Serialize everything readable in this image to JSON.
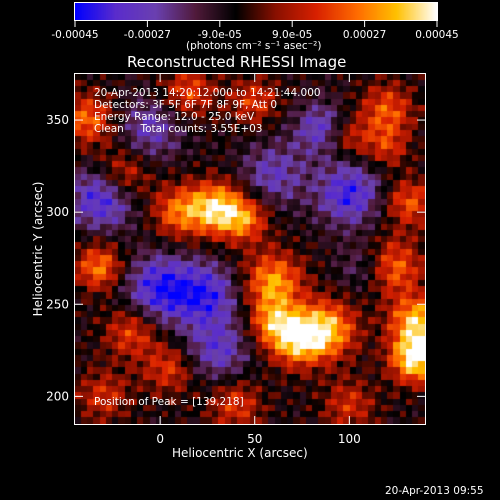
{
  "chart_data": {
    "type": "heatmap",
    "title": "Reconstructed RHESSI Image",
    "xlabel": "Heliocentric X (arcsec)",
    "ylabel": "Heliocentric Y (arcsec)",
    "xlim": [
      -45,
      140
    ],
    "ylim": [
      185,
      375
    ],
    "xticks": [
      0,
      50,
      100
    ],
    "yticks": [
      200,
      250,
      300,
      350
    ],
    "colorbar": {
      "units_label": "(photons cm⁻² s⁻¹ asec⁻²)",
      "range": [
        -0.00045,
        0.00045
      ],
      "tick_labels": [
        "-0.00045",
        "-0.00027",
        "-9.0e-05",
        "9.0e-05",
        "0.00027",
        "0.00045"
      ],
      "colormap": [
        "#0000ff",
        "#5a2ccc",
        "#6a40b0",
        "#501a3a",
        "#000000",
        "#8a1000",
        "#d82000",
        "#ff6a00",
        "#ffc000",
        "#ffffff"
      ]
    },
    "annotations": [
      "20-Apr-2013 14:20:12.000 to 14:21:44.000",
      "Detectors: 3F 5F 6F 7F 8F 9F, Att 0",
      "Energy Range: 12.0 - 25.0 keV",
      "Clean     Total counts: 3.55E+03",
      "Position of Peak = [139,218]"
    ],
    "peak": [
      139,
      218
    ],
    "sources": [
      {
        "x": 135,
        "y": 220,
        "amp": 1.0,
        "w": 9
      },
      {
        "x": 136,
        "y": 240,
        "amp": 0.85,
        "w": 10
      },
      {
        "x": 122,
        "y": 270,
        "amp": 0.7,
        "w": 11
      },
      {
        "x": 132,
        "y": 305,
        "amp": 0.55,
        "w": 9
      },
      {
        "x": 88,
        "y": 236,
        "amp": 0.85,
        "w": 11
      },
      {
        "x": 72,
        "y": 230,
        "amp": 0.75,
        "w": 10
      },
      {
        "x": 60,
        "y": 262,
        "amp": 0.75,
        "w": 11
      },
      {
        "x": 60,
        "y": 240,
        "amp": 0.6,
        "w": 9
      },
      {
        "x": 30,
        "y": 302,
        "amp": 0.85,
        "w": 10
      },
      {
        "x": 45,
        "y": 296,
        "amp": 0.6,
        "w": 9
      },
      {
        "x": 10,
        "y": 300,
        "amp": 0.6,
        "w": 10
      },
      {
        "x": -20,
        "y": 320,
        "amp": 0.55,
        "w": 10
      },
      {
        "x": -32,
        "y": 270,
        "amp": 0.65,
        "w": 9
      },
      {
        "x": -15,
        "y": 235,
        "amp": 0.5,
        "w": 10
      },
      {
        "x": 5,
        "y": 215,
        "amp": 0.45,
        "w": 10
      },
      {
        "x": -38,
        "y": 350,
        "amp": 0.6,
        "w": 10
      },
      {
        "x": 15,
        "y": 365,
        "amp": 0.5,
        "w": 10
      },
      {
        "x": 50,
        "y": 360,
        "amp": 0.45,
        "w": 9
      },
      {
        "x": 120,
        "y": 355,
        "amp": 0.55,
        "w": 10
      },
      {
        "x": 100,
        "y": 340,
        "amp": 0.4,
        "w": 8
      },
      {
        "x": 120,
        "y": 335,
        "amp": 0.4,
        "w": 8
      },
      {
        "x": 40,
        "y": 195,
        "amp": 0.45,
        "w": 10
      },
      {
        "x": 100,
        "y": 195,
        "amp": 0.4,
        "w": 10
      },
      {
        "x": -30,
        "y": 200,
        "amp": 0.4,
        "w": 10
      },
      {
        "x": 0,
        "y": 258,
        "amp": -0.7,
        "w": 13
      },
      {
        "x": 25,
        "y": 255,
        "amp": -0.6,
        "w": 12
      },
      {
        "x": -30,
        "y": 308,
        "amp": -0.7,
        "w": 12
      },
      {
        "x": 100,
        "y": 310,
        "amp": -0.65,
        "w": 12
      },
      {
        "x": 85,
        "y": 345,
        "amp": -0.5,
        "w": 10
      },
      {
        "x": 60,
        "y": 320,
        "amp": -0.45,
        "w": 12
      },
      {
        "x": -5,
        "y": 345,
        "amp": -0.45,
        "w": 12
      },
      {
        "x": 30,
        "y": 225,
        "amp": -0.5,
        "w": 12
      },
      {
        "x": 110,
        "y": 270,
        "amp": -0.4,
        "w": 10
      }
    ]
  },
  "footer": {
    "timestamp": "20-Apr-2013 09:55"
  }
}
